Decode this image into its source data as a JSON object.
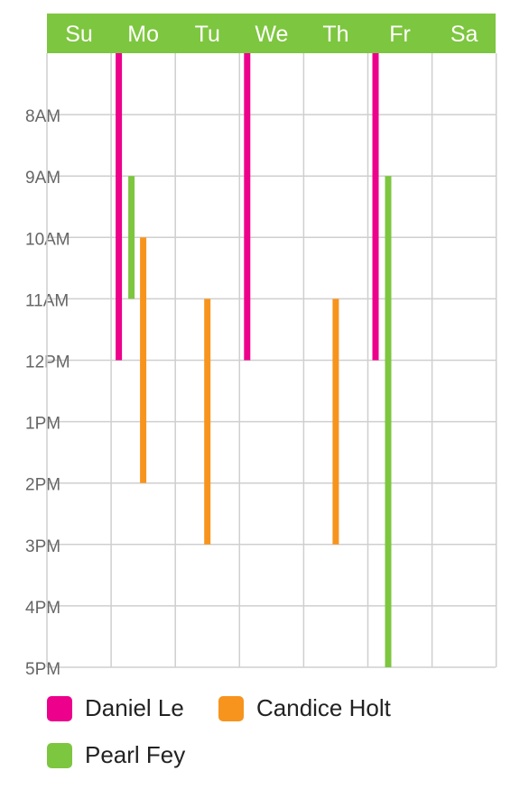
{
  "chart_data": {
    "type": "bar",
    "orientation": "vertical-ranges",
    "title": "",
    "xlabel": "",
    "ylabel": "",
    "categories": [
      "Su",
      "Mo",
      "Tu",
      "We",
      "Th",
      "Fr",
      "Sa"
    ],
    "y_ticks": [
      "8AM",
      "9AM",
      "10AM",
      "11AM",
      "12PM",
      "1PM",
      "2PM",
      "3PM",
      "4PM",
      "5PM"
    ],
    "y_range_hours": [
      7,
      17
    ],
    "grid": true,
    "legend_position": "bottom",
    "header_color": "#7dc63f",
    "series": [
      {
        "name": "Daniel Le",
        "color": "#ec008c",
        "values": [
          {
            "day": "Mo",
            "start": 7,
            "end": 12
          },
          {
            "day": "We",
            "start": 7,
            "end": 12
          },
          {
            "day": "Fr",
            "start": 7,
            "end": 12
          }
        ]
      },
      {
        "name": "Pearl Fey",
        "color": "#7dc63f",
        "values": [
          {
            "day": "Mo",
            "start": 9,
            "end": 11
          },
          {
            "day": "Fr",
            "start": 9,
            "end": 17
          }
        ]
      },
      {
        "name": "Candice Holt",
        "color": "#f7941d",
        "values": [
          {
            "day": "Mo",
            "start": 10,
            "end": 14
          },
          {
            "day": "Tu",
            "start": 11,
            "end": 15
          },
          {
            "day": "Th",
            "start": 11,
            "end": 15
          }
        ]
      }
    ]
  }
}
